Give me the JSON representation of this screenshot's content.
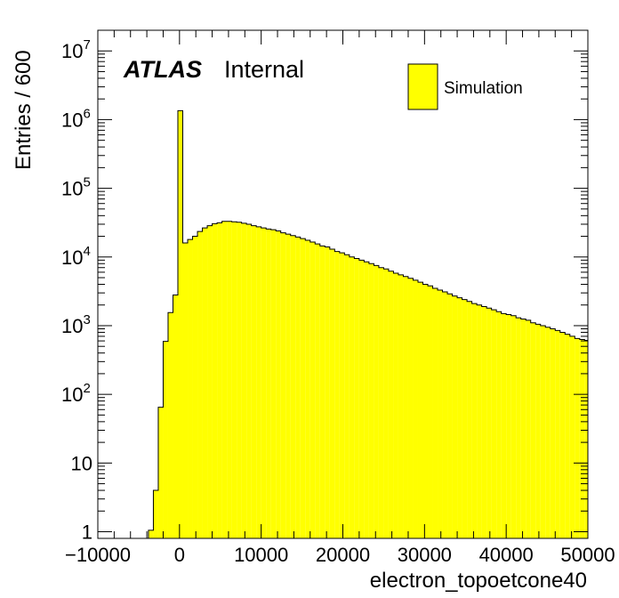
{
  "chart_data": {
    "type": "histogram",
    "y_scale": "log",
    "xlabel": "electron_topoetcone40",
    "ylabel": "Entries / 600",
    "xlim": [
      -10000,
      50000
    ],
    "ylim": [
      0.8,
      20000000
    ],
    "bin_width": 600,
    "x_ticks": [
      "−10000",
      "0",
      "10000",
      "20000",
      "30000",
      "40000",
      "50000"
    ],
    "x_tick_values": [
      -10000,
      0,
      10000,
      20000,
      30000,
      40000,
      50000
    ],
    "y_ticks": [
      {
        "value": 1,
        "base": "1",
        "exp": ""
      },
      {
        "value": 10,
        "base": "10",
        "exp": ""
      },
      {
        "value": 100,
        "base": "10",
        "exp": "2"
      },
      {
        "value": 1000,
        "base": "10",
        "exp": "3"
      },
      {
        "value": 10000,
        "base": "10",
        "exp": "4"
      },
      {
        "value": 100000,
        "base": "10",
        "exp": "5"
      },
      {
        "value": 1000000,
        "base": "10",
        "exp": "6"
      },
      {
        "value": 10000000,
        "base": "10",
        "exp": "7"
      }
    ],
    "fill_color": "#ffff00",
    "line_color": "#000000",
    "grid": false,
    "legend": {
      "position": "top-right",
      "entries": [
        "Simulation"
      ]
    },
    "annotation": {
      "bold": "ATLAS",
      "text": "Internal"
    },
    "series": [
      {
        "name": "Simulation",
        "bin_low_edges": [
          -3800,
          -3200,
          -2600,
          -2000,
          -1400,
          -800,
          -200,
          400,
          1000,
          1600,
          2200,
          2800,
          3400,
          4000,
          4600,
          5200,
          5800,
          6400,
          7000,
          7600,
          8200,
          8800,
          9400,
          10000,
          10600,
          11200,
          11800,
          12400,
          13000,
          13600,
          14200,
          14800,
          15400,
          16000,
          16600,
          17200,
          17800,
          18400,
          19000,
          19600,
          20200,
          20800,
          21400,
          22000,
          22600,
          23200,
          23800,
          24400,
          25000,
          25600,
          26200,
          26800,
          27400,
          28000,
          28600,
          29200,
          29800,
          30400,
          31000,
          31600,
          32200,
          32800,
          33400,
          34000,
          34600,
          35200,
          35800,
          36400,
          37000,
          37600,
          38200,
          38800,
          39400,
          40000,
          40600,
          41200,
          41800,
          42400,
          43000,
          43600,
          44200,
          44800,
          45400,
          46000,
          46600,
          47200,
          47800,
          48400,
          49000,
          49600
        ],
        "values": [
          1.05,
          4,
          65,
          590,
          1550,
          2800,
          1350000,
          16000,
          18000,
          20000,
          23500,
          26500,
          28500,
          30500,
          31500,
          33000,
          33000,
          32500,
          32000,
          31000,
          30000,
          28500,
          27500,
          26500,
          25500,
          25000,
          24000,
          22500,
          21500,
          20500,
          19500,
          18500,
          17500,
          16500,
          15500,
          14500,
          14000,
          13000,
          12000,
          11500,
          10800,
          10000,
          9500,
          9000,
          8500,
          8000,
          7500,
          7000,
          6700,
          6200,
          5800,
          5500,
          5200,
          4900,
          4600,
          4300,
          4000,
          3800,
          3500,
          3300,
          3100,
          2900,
          2700,
          2550,
          2400,
          2250,
          2100,
          2000,
          1900,
          1800,
          1700,
          1600,
          1500,
          1450,
          1400,
          1300,
          1250,
          1200,
          1100,
          1050,
          1000,
          950,
          900,
          850,
          800,
          750,
          700,
          650,
          630,
          610
        ]
      }
    ]
  }
}
